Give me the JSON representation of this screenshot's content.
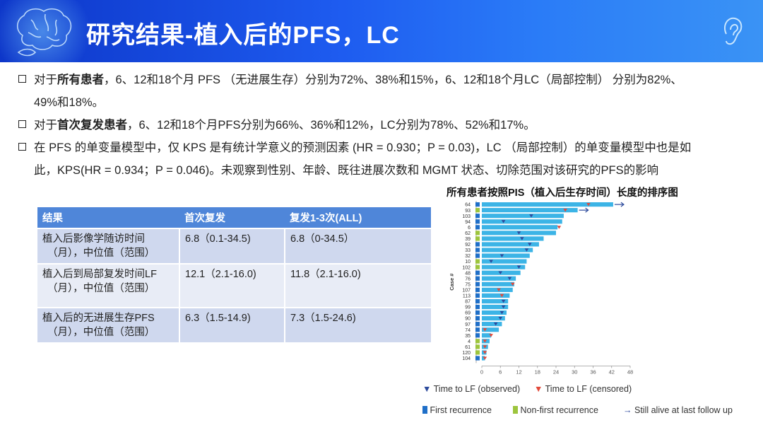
{
  "title": "研究结果-植入后的PFS，LC",
  "bullets": {
    "b1": {
      "pre": "对于",
      "bold": "所有患者",
      "post": "，6、12和18个月 PFS （无进展生存）分别为72%、38%和15%，6、12和18个月LC（局部控制） 分别为82%、",
      "line2": "49%和18%。"
    },
    "b2": {
      "pre": "对于",
      "bold": "首次复发患者",
      "post": "，6、12和18个月PFS分别为66%、36%和12%，LC分别为78%、52%和17%。"
    },
    "b3": {
      "line1": "在 PFS 的单变量模型中，仅 KPS 是有统计学意义的预测因素 (HR = 0.930；P = 0.03)，LC （局部控制）的单变量模型中也是如",
      "line2": "此，KPS(HR = 0.934；P = 0.046)。未观察到性别、年龄、既往进展次数和 MGMT 状态、切除范围对该研究的PFS的影响"
    }
  },
  "table": {
    "headers": [
      "结果",
      "首次复发",
      "复发1-3次(ALL)"
    ],
    "rows": [
      {
        "l1": "植入后影像学随访时间",
        "l2": "（月），中位值（范围）",
        "c1": "6.8（0.1-34.5)",
        "c2": "6.8（0-34.5）"
      },
      {
        "l1": "植入后到局部复发时间LF",
        "l2": "（月），中位值（范围）",
        "c1": "12.1（2.1-16.0)",
        "c2": "11.8（2.1-16.0)"
      },
      {
        "l1": "植入后的无进展生存PFS",
        "l2": "（月），中位值（范围）",
        "c1": "6.3（1.5-14.9)",
        "c2": "7.3（1.5-24.6)"
      }
    ]
  },
  "colors": {
    "bar": "#3cb4e6",
    "first": "#1f6fc8",
    "nonfirst": "#9dc53d",
    "observed": "#2c4a9c",
    "censored": "#e2493a",
    "alive": "#2c4a9c"
  },
  "chart_data": {
    "type": "bar",
    "orientation": "horizontal",
    "title": "所有患者按照PIS（植入后生存时间）长度的排序图",
    "ylabel": "Case #",
    "xlabel": "",
    "xlim": [
      0,
      48
    ],
    "xticks": [
      0,
      6,
      12,
      18,
      24,
      30,
      36,
      42,
      48
    ],
    "categories": [
      "64",
      "93",
      "103",
      "94",
      "6",
      "62",
      "39",
      "92",
      "33",
      "32",
      "10",
      "102",
      "48",
      "76",
      "75",
      "107",
      "113",
      "87",
      "99",
      "69",
      "90",
      "97",
      "74",
      "35",
      "4",
      "61",
      "120",
      "104"
    ],
    "values": [
      42.5,
      31.0,
      26.5,
      26.0,
      24.5,
      24.0,
      20.0,
      18.5,
      16.5,
      15.5,
      14.5,
      14.0,
      12.5,
      11.0,
      10.5,
      10.0,
      9.0,
      8.5,
      8.5,
      8.0,
      7.5,
      6.5,
      5.5,
      3.0,
      2.5,
      2.0,
      1.5,
      1.0
    ],
    "recurrence": [
      "first",
      "nonfirst",
      "first",
      "first",
      "first",
      "nonfirst",
      "nonfirst",
      "first",
      "first",
      "first",
      "nonfirst",
      "nonfirst",
      "first",
      "first",
      "first",
      "first",
      "first",
      "first",
      "first",
      "first",
      "first",
      "first",
      "first",
      "first",
      "nonfirst",
      "nonfirst",
      "nonfirst",
      "first"
    ],
    "lf_time": [
      34.5,
      27.0,
      16.0,
      7.0,
      25.0,
      12.0,
      13.0,
      15.5,
      14.5,
      6.5,
      3.0,
      12.0,
      6.0,
      9.0,
      10.0,
      5.5,
      6.5,
      7.0,
      7.0,
      6.5,
      6.0,
      4.5,
      1.0,
      3.0,
      1.0,
      1.0,
      1.0,
      1.0
    ],
    "lf_status": [
      "censored",
      "censored",
      "observed",
      "observed",
      "censored",
      "observed",
      "observed",
      "observed",
      "observed",
      "observed",
      "observed",
      "observed",
      "observed",
      "observed",
      "censored",
      "censored",
      "censored",
      "observed",
      "observed",
      "observed",
      "observed",
      "observed",
      "censored",
      "censored",
      "censored",
      "censored",
      "censored",
      "censored"
    ],
    "alive": [
      true,
      true,
      false,
      false,
      false,
      false,
      false,
      false,
      false,
      false,
      false,
      false,
      false,
      false,
      false,
      false,
      false,
      false,
      false,
      false,
      false,
      false,
      false,
      false,
      false,
      false,
      false,
      false
    ],
    "legend": {
      "observed": "Time to LF (observed)",
      "censored": "Time to LF (censored)",
      "first": "First recurrence",
      "nonfirst": "Non-first recurrence",
      "alive": "Still alive at last follow up"
    }
  }
}
